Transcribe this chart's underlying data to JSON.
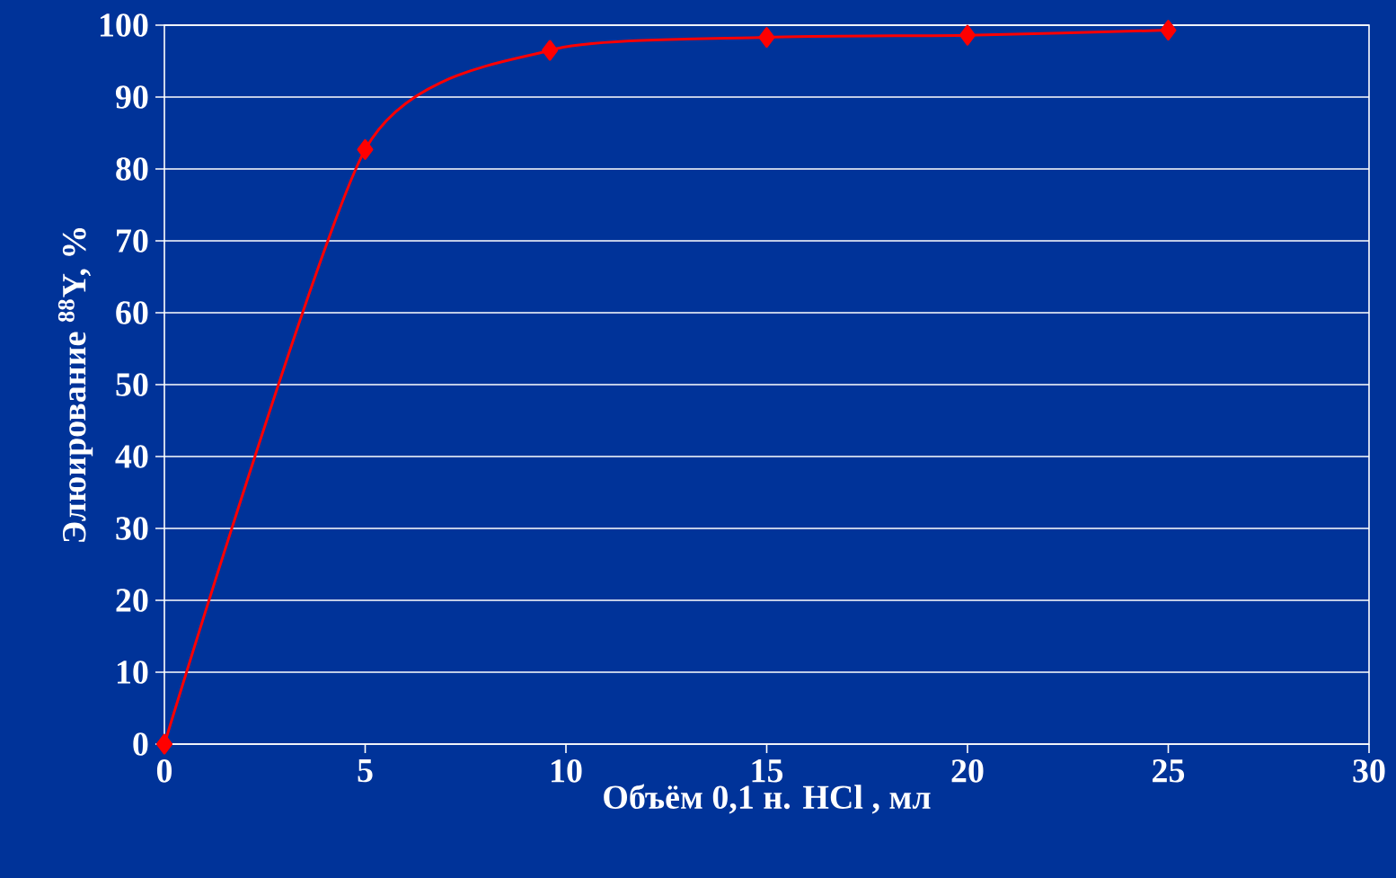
{
  "chart_data": {
    "type": "line",
    "xlabel": "Объём 0,1 н. HCl , мл",
    "ylabel": "Элюирование $^{88}$Y, %",
    "x": [
      0,
      5,
      9.6,
      15,
      20,
      25
    ],
    "series": [
      {
        "color": "#ff0000",
        "values": [
          0,
          82.7,
          96.5,
          98.3,
          98.6,
          99.3
        ]
      }
    ],
    "xlim": [
      0,
      30
    ],
    "ylim": [
      0,
      100
    ],
    "xticks": [
      0,
      5,
      10,
      15,
      20,
      25,
      30
    ],
    "yticks": [
      0,
      10,
      20,
      30,
      40,
      50,
      60,
      70,
      80,
      90,
      100
    ],
    "grid": "y",
    "marker": "diamond",
    "line_style": "solid"
  }
}
